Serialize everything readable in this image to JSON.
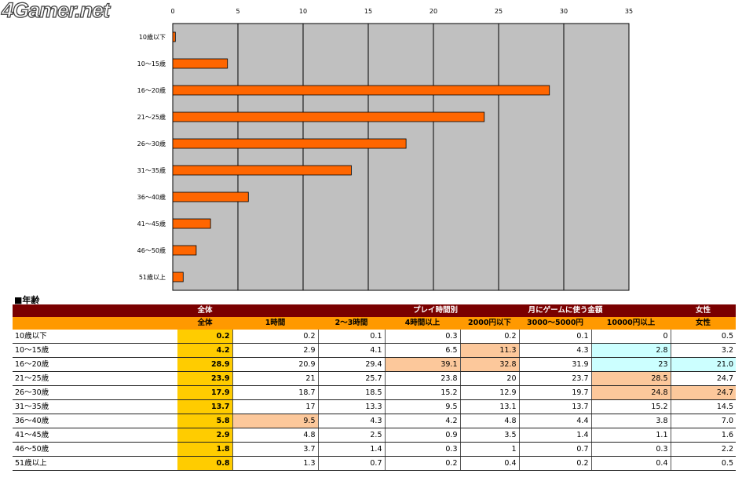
{
  "logo": "4Gamer.net",
  "colors": {
    "bar": "#ff6600",
    "plot_bg": "#c0c0c0",
    "header_dark": "#7a0000",
    "header_orange": "#ff9900",
    "total_col": "#ffcc00",
    "highlight_high": "#fcc89b",
    "highlight_low": "#ccffff"
  },
  "chart_data": {
    "type": "bar",
    "orientation": "horizontal",
    "categories": [
      "10歳以下",
      "10〜15歳",
      "16〜20歳",
      "21〜25歳",
      "26〜30歳",
      "31〜35歳",
      "36〜40歳",
      "41〜45歳",
      "46〜50歳",
      "51歳以上"
    ],
    "values": [
      0.2,
      4.2,
      28.9,
      23.9,
      17.9,
      13.7,
      5.8,
      2.9,
      1.8,
      0.8
    ],
    "xlim": [
      0,
      35
    ],
    "xticks": [
      "0",
      "5",
      "10",
      "15",
      "20",
      "25",
      "30",
      "35"
    ],
    "grid": true,
    "legend": "none"
  },
  "table": {
    "title": "■年齢",
    "group_headers": [
      "全体",
      "プレイ時間別",
      "月にゲームに使う金額",
      "女性"
    ],
    "columns": [
      "全体",
      "1時間",
      "2〜3時間",
      "4時間以上",
      "2000円以下",
      "3000〜5000円",
      "10000円以上",
      "女性"
    ],
    "rows": [
      {
        "label": "10歳以下",
        "values": [
          "0.2",
          "0.2",
          "0.1",
          "0.3",
          "0.2",
          "0.1",
          "0",
          "0.5"
        ],
        "hl": [
          "",
          "",
          "",
          "",
          "",
          "",
          "",
          ""
        ]
      },
      {
        "label": "10〜15歳",
        "values": [
          "4.2",
          "2.9",
          "4.1",
          "6.5",
          "11.3",
          "4.3",
          "2.8",
          "3.2"
        ],
        "hl": [
          "",
          "",
          "",
          "",
          "peach",
          "",
          "cyan",
          ""
        ]
      },
      {
        "label": "16〜20歳",
        "values": [
          "28.9",
          "20.9",
          "29.4",
          "39.1",
          "32.8",
          "31.9",
          "23",
          "21.0"
        ],
        "hl": [
          "",
          "",
          "",
          "peach",
          "peach",
          "",
          "cyan",
          "cyan"
        ]
      },
      {
        "label": "21〜25歳",
        "values": [
          "23.9",
          "21",
          "25.7",
          "23.8",
          "20",
          "23.7",
          "28.5",
          "24.7"
        ],
        "hl": [
          "",
          "",
          "",
          "",
          "",
          "",
          "peach",
          ""
        ]
      },
      {
        "label": "26〜30歳",
        "values": [
          "17.9",
          "18.7",
          "18.5",
          "15.2",
          "12.9",
          "19.7",
          "24.8",
          "24.7"
        ],
        "hl": [
          "",
          "",
          "",
          "",
          "",
          "",
          "peach",
          "peach"
        ]
      },
      {
        "label": "31〜35歳",
        "values": [
          "13.7",
          "17",
          "13.3",
          "9.5",
          "13.1",
          "13.7",
          "15.2",
          "14.5"
        ],
        "hl": [
          "",
          "",
          "",
          "",
          "",
          "",
          "",
          ""
        ]
      },
      {
        "label": "36〜40歳",
        "values": [
          "5.8",
          "9.5",
          "4.3",
          "4.2",
          "4.8",
          "4.4",
          "3.8",
          "7.0"
        ],
        "hl": [
          "",
          "peach",
          "",
          "",
          "",
          "",
          "",
          ""
        ]
      },
      {
        "label": "41〜45歳",
        "values": [
          "2.9",
          "4.8",
          "2.5",
          "0.9",
          "3.5",
          "1.4",
          "1.1",
          "1.6"
        ],
        "hl": [
          "",
          "",
          "",
          "",
          "",
          "",
          "",
          ""
        ]
      },
      {
        "label": "46〜50歳",
        "values": [
          "1.8",
          "3.7",
          "1.4",
          "0.3",
          "1",
          "0.7",
          "0.3",
          "2.2"
        ],
        "hl": [
          "",
          "",
          "",
          "",
          "",
          "",
          "",
          ""
        ]
      },
      {
        "label": "51歳以上",
        "values": [
          "0.8",
          "1.3",
          "0.7",
          "0.2",
          "0.4",
          "0.2",
          "0.4",
          "0.5"
        ],
        "hl": [
          "",
          "",
          "",
          "",
          "",
          "",
          "",
          ""
        ]
      }
    ]
  }
}
